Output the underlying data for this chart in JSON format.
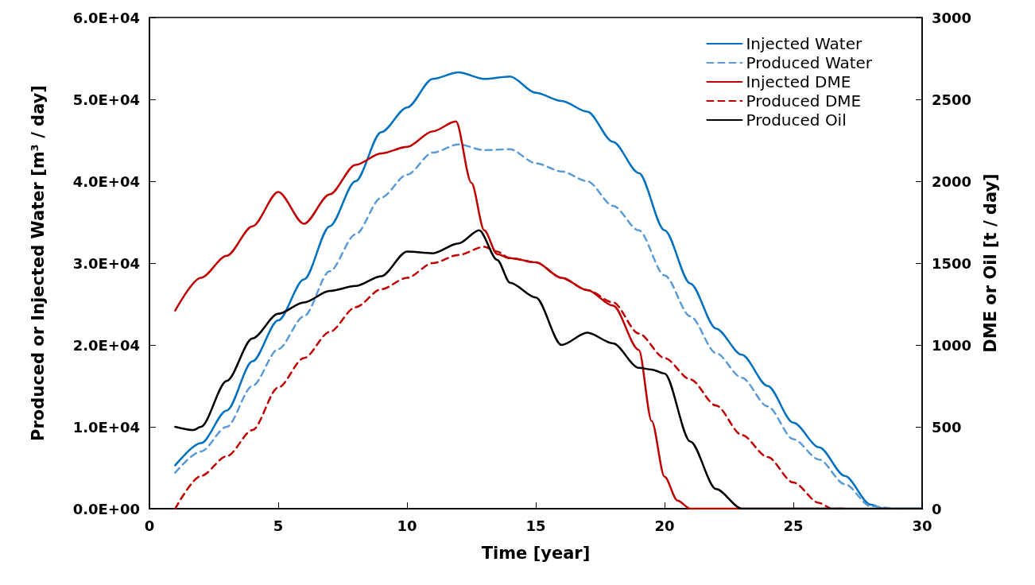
{
  "chart_data": {
    "type": "line",
    "xlabel": "Time [year]",
    "ylabel": "Produced or Injected Water [m³ / day]",
    "y2label": "DME or Oil [t / day]",
    "xlim": [
      0,
      30
    ],
    "xticks": [
      0,
      5,
      10,
      15,
      20,
      25,
      30
    ],
    "ylim": [
      0,
      60000
    ],
    "yticks": [
      {
        "value": 0,
        "label": "0.0E+00"
      },
      {
        "value": 10000,
        "label": "1.0E+04"
      },
      {
        "value": 20000,
        "label": "2.0E+04"
      },
      {
        "value": 30000,
        "label": "3.0E+04"
      },
      {
        "value": 40000,
        "label": "4.0E+04"
      },
      {
        "value": 50000,
        "label": "5.0E+04"
      },
      {
        "value": 60000,
        "label": "6.0E+04"
      }
    ],
    "y2lim": [
      0,
      3000
    ],
    "y2ticks": [
      0,
      500,
      1000,
      1500,
      2000,
      2500,
      3000
    ],
    "legend": "top right",
    "grid": false,
    "marker": "none",
    "series": [
      {
        "name": "Injected Water",
        "color": "#0070c0",
        "line_style": "solid",
        "x": [
          1,
          2,
          3,
          4,
          5,
          6,
          7,
          8,
          9,
          10,
          11,
          12,
          13,
          14,
          15,
          16,
          17,
          18,
          19,
          20,
          21,
          22,
          23,
          24,
          25,
          26,
          27,
          28,
          28.5,
          29,
          30
        ],
        "values": [
          5300,
          8000,
          12000,
          18000,
          23000,
          28000,
          34500,
          40000,
          46000,
          49000,
          52500,
          53300,
          52500,
          52800,
          50800,
          49800,
          48500,
          44800,
          41000,
          34000,
          27500,
          22000,
          18800,
          15000,
          10500,
          7500,
          4000,
          500,
          0,
          0,
          0
        ]
      },
      {
        "name": "Produced Water",
        "color": "#5b9bd5",
        "line_style": "dashed",
        "x": [
          1,
          2,
          3,
          4,
          5,
          6,
          7,
          8,
          9,
          10,
          11,
          12,
          13,
          14,
          15,
          16,
          17,
          18,
          19,
          20,
          21,
          22,
          23,
          24,
          25,
          26,
          27,
          28,
          29,
          30
        ],
        "values": [
          4400,
          7000,
          10000,
          15000,
          19500,
          23500,
          29000,
          33500,
          38000,
          40800,
          43500,
          44500,
          43800,
          43900,
          42200,
          41200,
          40000,
          37000,
          34000,
          28500,
          23500,
          19000,
          16000,
          12500,
          8500,
          6000,
          3000,
          300,
          0,
          0
        ]
      },
      {
        "name": "Injected DME",
        "color": "#c00000",
        "line_style": "solid",
        "axis": "y2",
        "x": [
          1,
          2,
          3,
          4,
          5,
          6,
          7,
          8,
          9,
          10,
          11,
          11.9,
          12.5,
          13,
          13.5,
          14,
          15,
          16,
          17,
          18,
          19,
          19.5,
          20,
          20.5,
          21,
          22,
          23,
          24,
          25,
          26,
          27
        ],
        "values": [
          1210,
          1410,
          1545,
          1725,
          1935,
          1740,
          1920,
          2100,
          2170,
          2210,
          2305,
          2365,
          1990,
          1700,
          1555,
          1530,
          1505,
          1410,
          1335,
          1240,
          970,
          535,
          195,
          50,
          0,
          0,
          0,
          0,
          0,
          0,
          0
        ]
      },
      {
        "name": "Produced DME",
        "color": "#c00000",
        "line_style": "dashed",
        "axis": "y2",
        "x": [
          1,
          2,
          3,
          4,
          5,
          6,
          7,
          8,
          9,
          10,
          11,
          12,
          13,
          13.5,
          14,
          15,
          16,
          17,
          18,
          19,
          20,
          21,
          22,
          23,
          24,
          25,
          26,
          26.5,
          27
        ],
        "values": [
          0,
          200,
          320,
          480,
          740,
          920,
          1080,
          1230,
          1340,
          1410,
          1500,
          1550,
          1600,
          1570,
          1530,
          1505,
          1410,
          1335,
          1260,
          1070,
          920,
          790,
          630,
          450,
          315,
          160,
          35,
          0,
          0
        ]
      },
      {
        "name": "Produced Oil",
        "color": "#000000",
        "line_style": "solid",
        "axis": "y2",
        "x": [
          1,
          1.7,
          2,
          3,
          4,
          5,
          6,
          7,
          8,
          9,
          10,
          11,
          12,
          12.8,
          13.5,
          14,
          15,
          16,
          17,
          18,
          19,
          19.5,
          20,
          21,
          22,
          23,
          24,
          25,
          26,
          27,
          28,
          29,
          30
        ],
        "values": [
          500,
          480,
          500,
          780,
          1040,
          1190,
          1260,
          1330,
          1360,
          1420,
          1570,
          1560,
          1620,
          1700,
          1520,
          1380,
          1290,
          1000,
          1075,
          1010,
          860,
          850,
          825,
          410,
          120,
          0,
          0,
          0,
          0,
          0,
          0,
          0,
          0
        ]
      }
    ]
  }
}
